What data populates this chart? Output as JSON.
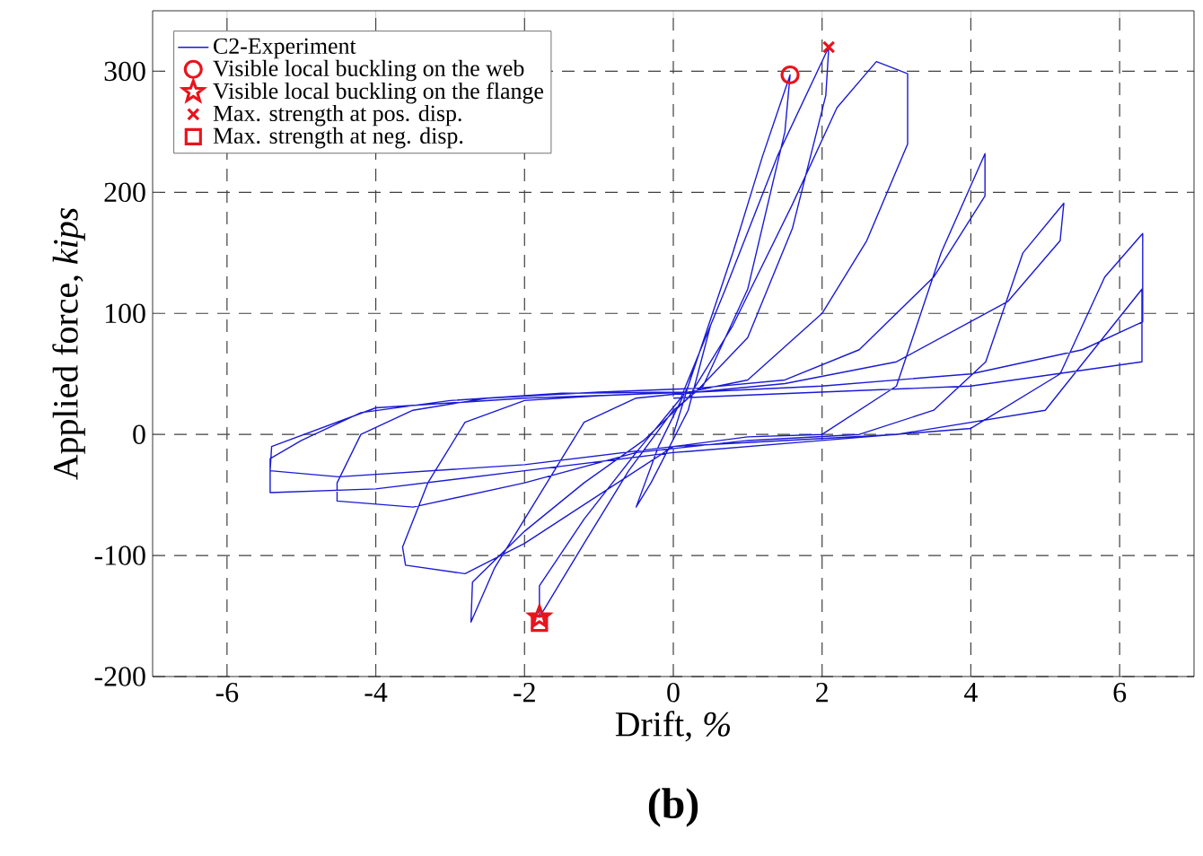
{
  "chart_data": {
    "type": "line",
    "xlabel": "Drift, *%*",
    "ylabel": "Applied force, *kips*",
    "annotations": [
      "(b)"
    ],
    "xlim": [
      -7,
      7
    ],
    "ylim": [
      -200,
      350
    ],
    "xticks": [
      -6,
      -4,
      -2,
      0,
      2,
      4,
      6
    ],
    "yticks": [
      -200,
      -100,
      0,
      100,
      200,
      300
    ],
    "grid": true,
    "legend": "top left",
    "line_style": "solid",
    "series": [
      {
        "name": "C2-Experiment",
        "marker": "none",
        "color": "#1a1ad6",
        "x": [
          0,
          0.3,
          0.5,
          0.2,
          -0.3,
          -0.5,
          -0.2,
          0.2,
          0.8,
          1.2,
          1.57,
          1.5,
          1.0,
          0.4,
          0,
          -0.6,
          -1.2,
          -1.8,
          -1.8,
          -1.2,
          -0.5,
          0.1,
          0.7,
          1.4,
          2.09,
          2.05,
          1.6,
          1.0,
          0.3,
          -0.5,
          -1.2,
          -1.9,
          -2.4,
          -2.72,
          -2.7,
          -2.0,
          -1.2,
          -0.4,
          0.2,
          0.8,
          1.6,
          2.2,
          2.73,
          3.15,
          3.15,
          2.6,
          2.0,
          1.0,
          0.2,
          -1.0,
          -2.0,
          -2.8,
          -3.3,
          -3.64,
          -3.6,
          -2.8,
          -2.0,
          -1.0,
          0,
          1.0,
          2.0,
          3.0,
          3.6,
          4.19,
          4.19,
          3.5,
          2.5,
          1.5,
          0.3,
          -1.0,
          -2.5,
          -3.5,
          -4.2,
          -4.52,
          -4.52,
          -3.5,
          -2.0,
          -0.5,
          1.0,
          2.5,
          3.5,
          4.2,
          4.7,
          5.25,
          5.2,
          4.5,
          3.0,
          1.5,
          0.3,
          -1.5,
          -3.0,
          -4.2,
          -5.0,
          -5.42,
          -5.42,
          -4.0,
          -2.0,
          0,
          2.0,
          4.0,
          5.2,
          5.8,
          6.31,
          6.31,
          5.5,
          4.0,
          2.0,
          0.3,
          -2.0,
          -4.0,
          -5.4,
          -5.42,
          -4.5,
          -2.0,
          0,
          3.0,
          5.0,
          6.3,
          6.3,
          4.0,
          0
        ],
        "values": [
          0,
          60,
          90,
          20,
          -40,
          -60,
          -10,
          40,
          150,
          230,
          297,
          250,
          120,
          40,
          20,
          -30,
          -90,
          -151,
          -125,
          -70,
          -15,
          30,
          120,
          230,
          320,
          280,
          170,
          80,
          35,
          30,
          10,
          -60,
          -110,
          -155,
          -122,
          -80,
          -40,
          -5,
          30,
          90,
          190,
          270,
          308,
          298,
          240,
          160,
          100,
          45,
          35,
          32,
          28,
          10,
          -40,
          -93,
          -108,
          -115,
          -90,
          -50,
          -10,
          -2,
          0,
          40,
          150,
          232,
          197,
          130,
          70,
          45,
          38,
          35,
          30,
          20,
          0,
          -40,
          -55,
          -60,
          -40,
          -15,
          -5,
          0,
          20,
          60,
          150,
          191,
          160,
          110,
          60,
          42,
          35,
          34,
          28,
          18,
          -5,
          -20,
          -48,
          -45,
          -30,
          -15,
          -5,
          5,
          50,
          130,
          166,
          93,
          70,
          50,
          40,
          35,
          30,
          22,
          -10,
          -30,
          -35,
          -25,
          -10,
          0,
          20,
          120,
          60,
          40,
          30
        ]
      },
      {
        "name": "Visible local buckling on the web",
        "type": "scatter",
        "marker": "circle",
        "color": "#e8141c",
        "x": [
          1.57
        ],
        "values": [
          297
        ]
      },
      {
        "name": "Visible local buckling on the flange",
        "type": "scatter",
        "marker": "star",
        "color": "#e8141c",
        "x": [
          -1.8
        ],
        "values": [
          -151
        ]
      },
      {
        "name": "Max. strength at pos. disp.",
        "type": "scatter",
        "marker": "cross",
        "color": "#e8141c",
        "x": [
          2.09
        ],
        "values": [
          320
        ]
      },
      {
        "name": "Max. strength at neg. disp.",
        "type": "scatter",
        "marker": "square",
        "color": "#e8141c",
        "x": [
          -1.8
        ],
        "values": [
          -156
        ]
      }
    ]
  }
}
